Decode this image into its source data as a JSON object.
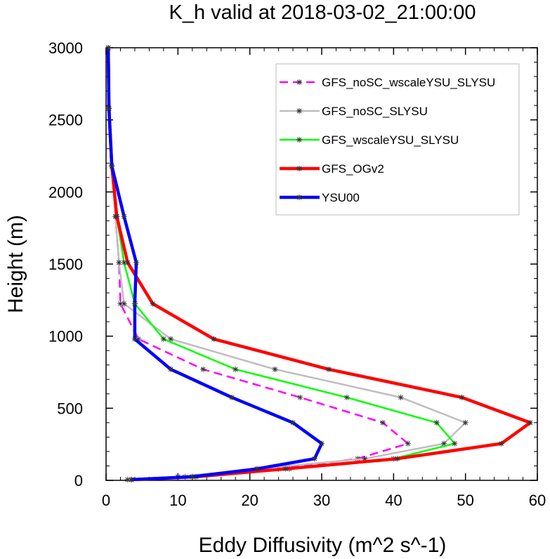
{
  "chart_data": {
    "type": "line",
    "title": "K_h valid at 2018-03-02_21:00:00",
    "xlabel": "Eddy Diffusivity (m^2 s^-1)",
    "ylabel": "Height (m)",
    "xlim": [
      0,
      60
    ],
    "ylim": [
      0,
      3000
    ],
    "xticks": [
      0,
      10,
      20,
      30,
      40,
      50,
      60
    ],
    "yticks": [
      0,
      500,
      1000,
      1500,
      2000,
      2500,
      3000
    ],
    "grid": false,
    "legend_position": "top-right",
    "series": [
      {
        "name": "GFS_noSC_wscaleYSU_SLYSU",
        "color": "#ff00ff",
        "dashed": true,
        "points": [
          [
            3.5,
            5
          ],
          [
            11,
            25
          ],
          [
            24,
            80
          ],
          [
            35,
            150
          ],
          [
            42,
            255
          ],
          [
            38.5,
            400
          ],
          [
            27,
            575
          ],
          [
            13.5,
            770
          ],
          [
            4.5,
            980
          ],
          [
            2,
            1225
          ],
          [
            1.8,
            1510
          ],
          [
            1.3,
            1830
          ],
          [
            0.8,
            2180
          ],
          [
            0.4,
            2580
          ],
          [
            0.3,
            3000
          ]
        ]
      },
      {
        "name": "GFS_noSC_SLYSU",
        "color": "#bebebe",
        "dashed": false,
        "points": [
          [
            3,
            5
          ],
          [
            10,
            25
          ],
          [
            21,
            80
          ],
          [
            36,
            150
          ],
          [
            47,
            255
          ],
          [
            50,
            400
          ],
          [
            41,
            575
          ],
          [
            23.5,
            770
          ],
          [
            9,
            980
          ],
          [
            2.5,
            1225
          ],
          [
            1.8,
            1510
          ],
          [
            1.3,
            1830
          ],
          [
            0.8,
            2180
          ],
          [
            0.4,
            2580
          ],
          [
            0.3,
            3000
          ]
        ]
      },
      {
        "name": "GFS_wscaleYSU_SLYSU",
        "color": "#00ff00",
        "dashed": false,
        "points": [
          [
            3.5,
            5
          ],
          [
            12,
            25
          ],
          [
            25.5,
            80
          ],
          [
            40,
            150
          ],
          [
            48.5,
            255
          ],
          [
            46,
            400
          ],
          [
            33.5,
            575
          ],
          [
            18,
            770
          ],
          [
            8,
            980
          ],
          [
            4,
            1225
          ],
          [
            2.5,
            1510
          ],
          [
            1.5,
            1830
          ],
          [
            0.8,
            2180
          ],
          [
            0.4,
            2580
          ],
          [
            0.3,
            3000
          ]
        ]
      },
      {
        "name": "GFS_OGv2",
        "color": "#ff0000",
        "dashed": false,
        "points": [
          [
            3.5,
            5
          ],
          [
            12.5,
            25
          ],
          [
            25,
            80
          ],
          [
            40.5,
            150
          ],
          [
            55,
            255
          ],
          [
            59,
            400
          ],
          [
            49.5,
            575
          ],
          [
            31,
            770
          ],
          [
            15,
            980
          ],
          [
            6.5,
            1225
          ],
          [
            3,
            1510
          ],
          [
            1.5,
            1830
          ],
          [
            0.8,
            2180
          ],
          [
            0.4,
            2580
          ],
          [
            0.3,
            3000
          ]
        ]
      },
      {
        "name": "YSU00",
        "color": "#0000ff",
        "dashed": false,
        "points": [
          [
            3.5,
            5
          ],
          [
            12,
            25
          ],
          [
            21,
            80
          ],
          [
            29,
            150
          ],
          [
            30,
            255
          ],
          [
            26,
            400
          ],
          [
            17.5,
            575
          ],
          [
            9,
            770
          ],
          [
            4,
            980
          ],
          [
            4,
            1225
          ],
          [
            4.2,
            1510
          ],
          [
            2.5,
            1830
          ],
          [
            0.8,
            2180
          ],
          [
            0.4,
            2580
          ],
          [
            0.3,
            3000
          ]
        ]
      }
    ]
  }
}
